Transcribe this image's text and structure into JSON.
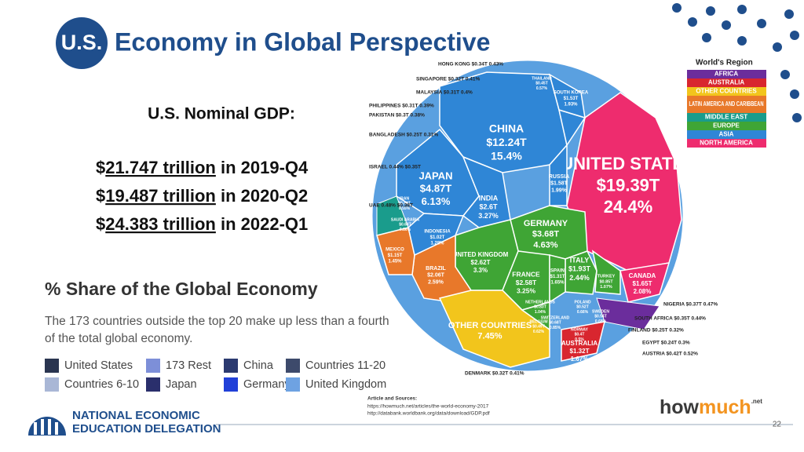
{
  "header": {
    "badge": "U.S.",
    "title": "Economy in Global Perspective"
  },
  "gdp": {
    "heading": "U.S. Nominal GDP:",
    "rows": [
      {
        "currency": "$",
        "amount": "21.747 trillion",
        "period": " in 2019-Q4"
      },
      {
        "currency": "$",
        "amount": "19.487 trillion",
        "period": " in 2020-Q2"
      },
      {
        "currency": "$",
        "amount": "24.383 trillion",
        "period": " in 2022-Q1"
      }
    ]
  },
  "share_panel": {
    "title": "% Share of the Global Economy",
    "subtitle_lines": [
      "The 173 countries outside the top 20 make up less than a fourth",
      "of the total global economy."
    ],
    "legend": [
      {
        "name": "United States",
        "color": "#2a3550"
      },
      {
        "name": "173 Rest",
        "color": "#7d8fd8"
      },
      {
        "name": "China",
        "color": "#2b3a70"
      },
      {
        "name": "Countries 11-20",
        "color": "#3d4a6b"
      },
      {
        "name": "Countries 6-10",
        "color": "#a9b7d6"
      },
      {
        "name": "Japan",
        "color": "#2a2f6c"
      },
      {
        "name": "Germany",
        "color": "#2140d8"
      },
      {
        "name": "United Kingdom",
        "color": "#6ea2e2"
      }
    ]
  },
  "region_legend": {
    "title": "World's Region",
    "items": [
      {
        "name": "AFRICA",
        "color": "#6b2d9c"
      },
      {
        "name": "AUSTRALIA",
        "color": "#d8262f"
      },
      {
        "name": "OTHER COUNTRIES",
        "color": "#f2c51c"
      },
      {
        "name": "LATIN AMERICA AND CARIBBEAN",
        "color": "#e8782a"
      },
      {
        "name": "MIDDLE EAST",
        "color": "#1a9c8c"
      },
      {
        "name": "EUROPE",
        "color": "#3fa535"
      },
      {
        "name": "ASIA",
        "color": "#2f86d6"
      },
      {
        "name": "NORTH AMERICA",
        "color": "#ee2c6e"
      }
    ]
  },
  "voronoi": {
    "cells": [
      {
        "name": "UNITED STATES",
        "value": "$19.39T",
        "share": "24.4%",
        "color": "#ee2c6e"
      },
      {
        "name": "CHINA",
        "value": "$12.24T",
        "share": "15.4%",
        "color": "#2f86d6"
      },
      {
        "name": "JAPAN",
        "value": "$4.87T",
        "share": "6.13%",
        "color": "#2f86d6"
      },
      {
        "name": "GERMANY",
        "value": "$3.68T",
        "share": "4.63%",
        "color": "#3fa535"
      },
      {
        "name": "INDIA",
        "value": "$2.6T",
        "share": "3.27%",
        "color": "#2f86d6"
      },
      {
        "name": "UNITED KINGDOM",
        "value": "$2.62T",
        "share": "3.3%",
        "color": "#3fa535"
      },
      {
        "name": "FRANCE",
        "value": "$2.58T",
        "share": "3.25%",
        "color": "#3fa535"
      },
      {
        "name": "BRAZIL",
        "value": "$2.06T",
        "share": "2.59%",
        "color": "#e8782a"
      },
      {
        "name": "ITALY",
        "value": "$1.93T",
        "share": "2.44%",
        "color": "#3fa535"
      },
      {
        "name": "RUSSIA",
        "value": "$1.58T",
        "share": "1.99%",
        "color": "#2f86d6"
      },
      {
        "name": "CANADA",
        "value": "$1.65T",
        "share": "2.08%",
        "color": "#ee2c6e"
      },
      {
        "name": "SOUTH KOREA",
        "value": "$1.53T",
        "share": "1.93%",
        "color": "#2f86d6"
      },
      {
        "name": "SPAIN",
        "value": "$1.31T",
        "share": "1.65%",
        "color": "#3fa535"
      },
      {
        "name": "MEXICO",
        "value": "$1.15T",
        "share": "1.45%",
        "color": "#e8782a"
      },
      {
        "name": "INDONESIA",
        "value": "$1.02T",
        "share": "1.28%",
        "color": "#2f86d6"
      },
      {
        "name": "AUSTRALIA",
        "value": "$1.32T",
        "share": "1.67%",
        "color": "#d8262f"
      },
      {
        "name": "OTHER COUNTRIES",
        "share": "7.45%",
        "color": "#f2c51c"
      },
      {
        "name": "TURKEY",
        "value": "$0.85T",
        "share": "1.07%",
        "color": "#3fa535"
      },
      {
        "name": "THAILAND",
        "value": "$0.45T",
        "share": "0.57%",
        "color": "#2f86d6"
      },
      {
        "name": "IRAN",
        "value": "$0.44T",
        "share": "0.55%",
        "color": "#1a9c8c"
      },
      {
        "name": "SAUDI ARABIA",
        "value": "$0.68T",
        "share": "0.86%",
        "color": "#1a9c8c"
      },
      {
        "name": "NETHERLANDS",
        "value": "$0.83T",
        "share": "1.04%",
        "color": "#3fa535"
      },
      {
        "name": "POLAND",
        "value": "$0.52T",
        "share": "0.66%",
        "color": "#3fa535"
      },
      {
        "name": "SWEDEN",
        "value": "$0.54T",
        "share": "0.68%",
        "color": "#3fa535"
      },
      {
        "name": "SWITZERLAND",
        "value": "$0.68T",
        "share": "0.85%",
        "color": "#3fa535"
      },
      {
        "name": "BELGIUM",
        "value": "$0.49T",
        "share": "0.62%",
        "color": "#3fa535"
      },
      {
        "name": "NORWAY",
        "value": "$0.4T",
        "share": "0.5%",
        "color": "#3fa535"
      }
    ],
    "callouts": [
      "HONG KONG $0.34T 0.43%",
      "SINGAPORE $0.32T 0.41%",
      "MALAYSIA $0.31T 0.4%",
      "PHILIPPINES $0.31T 0.39%",
      "PAKISTAN $0.3T 0.38%",
      "BANGLADESH $0.25T 0.31%",
      "ISRAEL 0.44% $0.35T",
      "UAE 0.48% $0.38T",
      "NIGERIA $0.37T 0.47%",
      "SOUTH AFRICA $0.35T 0.44%",
      "FINLAND $0.25T 0.32%",
      "EGYPT $0.24T 0.3%",
      "AUSTRIA $0.42T 0.52%",
      "DENMARK $0.32T 0.41%"
    ]
  },
  "sources": {
    "heading": "Article and Sources:",
    "lines": [
      "https://howmuch.net/articles/the-world-economy-2017",
      "http://databank.worldbank.org/data/download/GDP.pdf"
    ]
  },
  "brand": {
    "how": "how",
    "much": "much",
    "net": ".net"
  },
  "footer": {
    "org_lines": [
      "NATIONAL ECONOMIC",
      "EDUCATION DELEGATION"
    ],
    "page": "22"
  }
}
